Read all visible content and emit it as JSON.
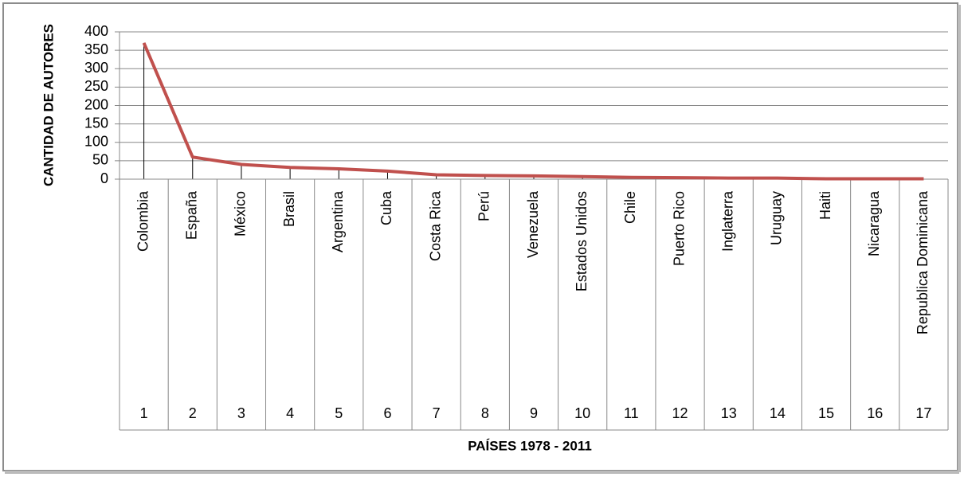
{
  "chart_data": {
    "type": "line",
    "y_label": "CANTIDAD DE AUTORES",
    "x_label": "PAÍSES 1978 - 2011",
    "categories": [
      "Colombia",
      "España",
      "México",
      "Brasil",
      "Argentina",
      "Cuba",
      "Costa Rica",
      "Perú",
      "Venezuela",
      "Estados Unidos",
      "Chile",
      "Puerto Rico",
      "Inglaterra",
      "Uruguay",
      "Haiti",
      "Nicaragua",
      "Republica Dominicana"
    ],
    "category_numbers": [
      1,
      2,
      3,
      4,
      5,
      6,
      7,
      8,
      9,
      10,
      11,
      12,
      13,
      14,
      15,
      16,
      17
    ],
    "values": [
      370,
      60,
      40,
      32,
      28,
      22,
      12,
      10,
      9,
      7,
      5,
      4,
      3,
      3,
      1,
      1,
      1
    ],
    "color": "#c0504d",
    "ylim": [
      0,
      400
    ],
    "yticks": [
      0,
      50,
      100,
      150,
      200,
      250,
      300,
      350,
      400
    ],
    "grid": true,
    "drop_lines": true
  }
}
